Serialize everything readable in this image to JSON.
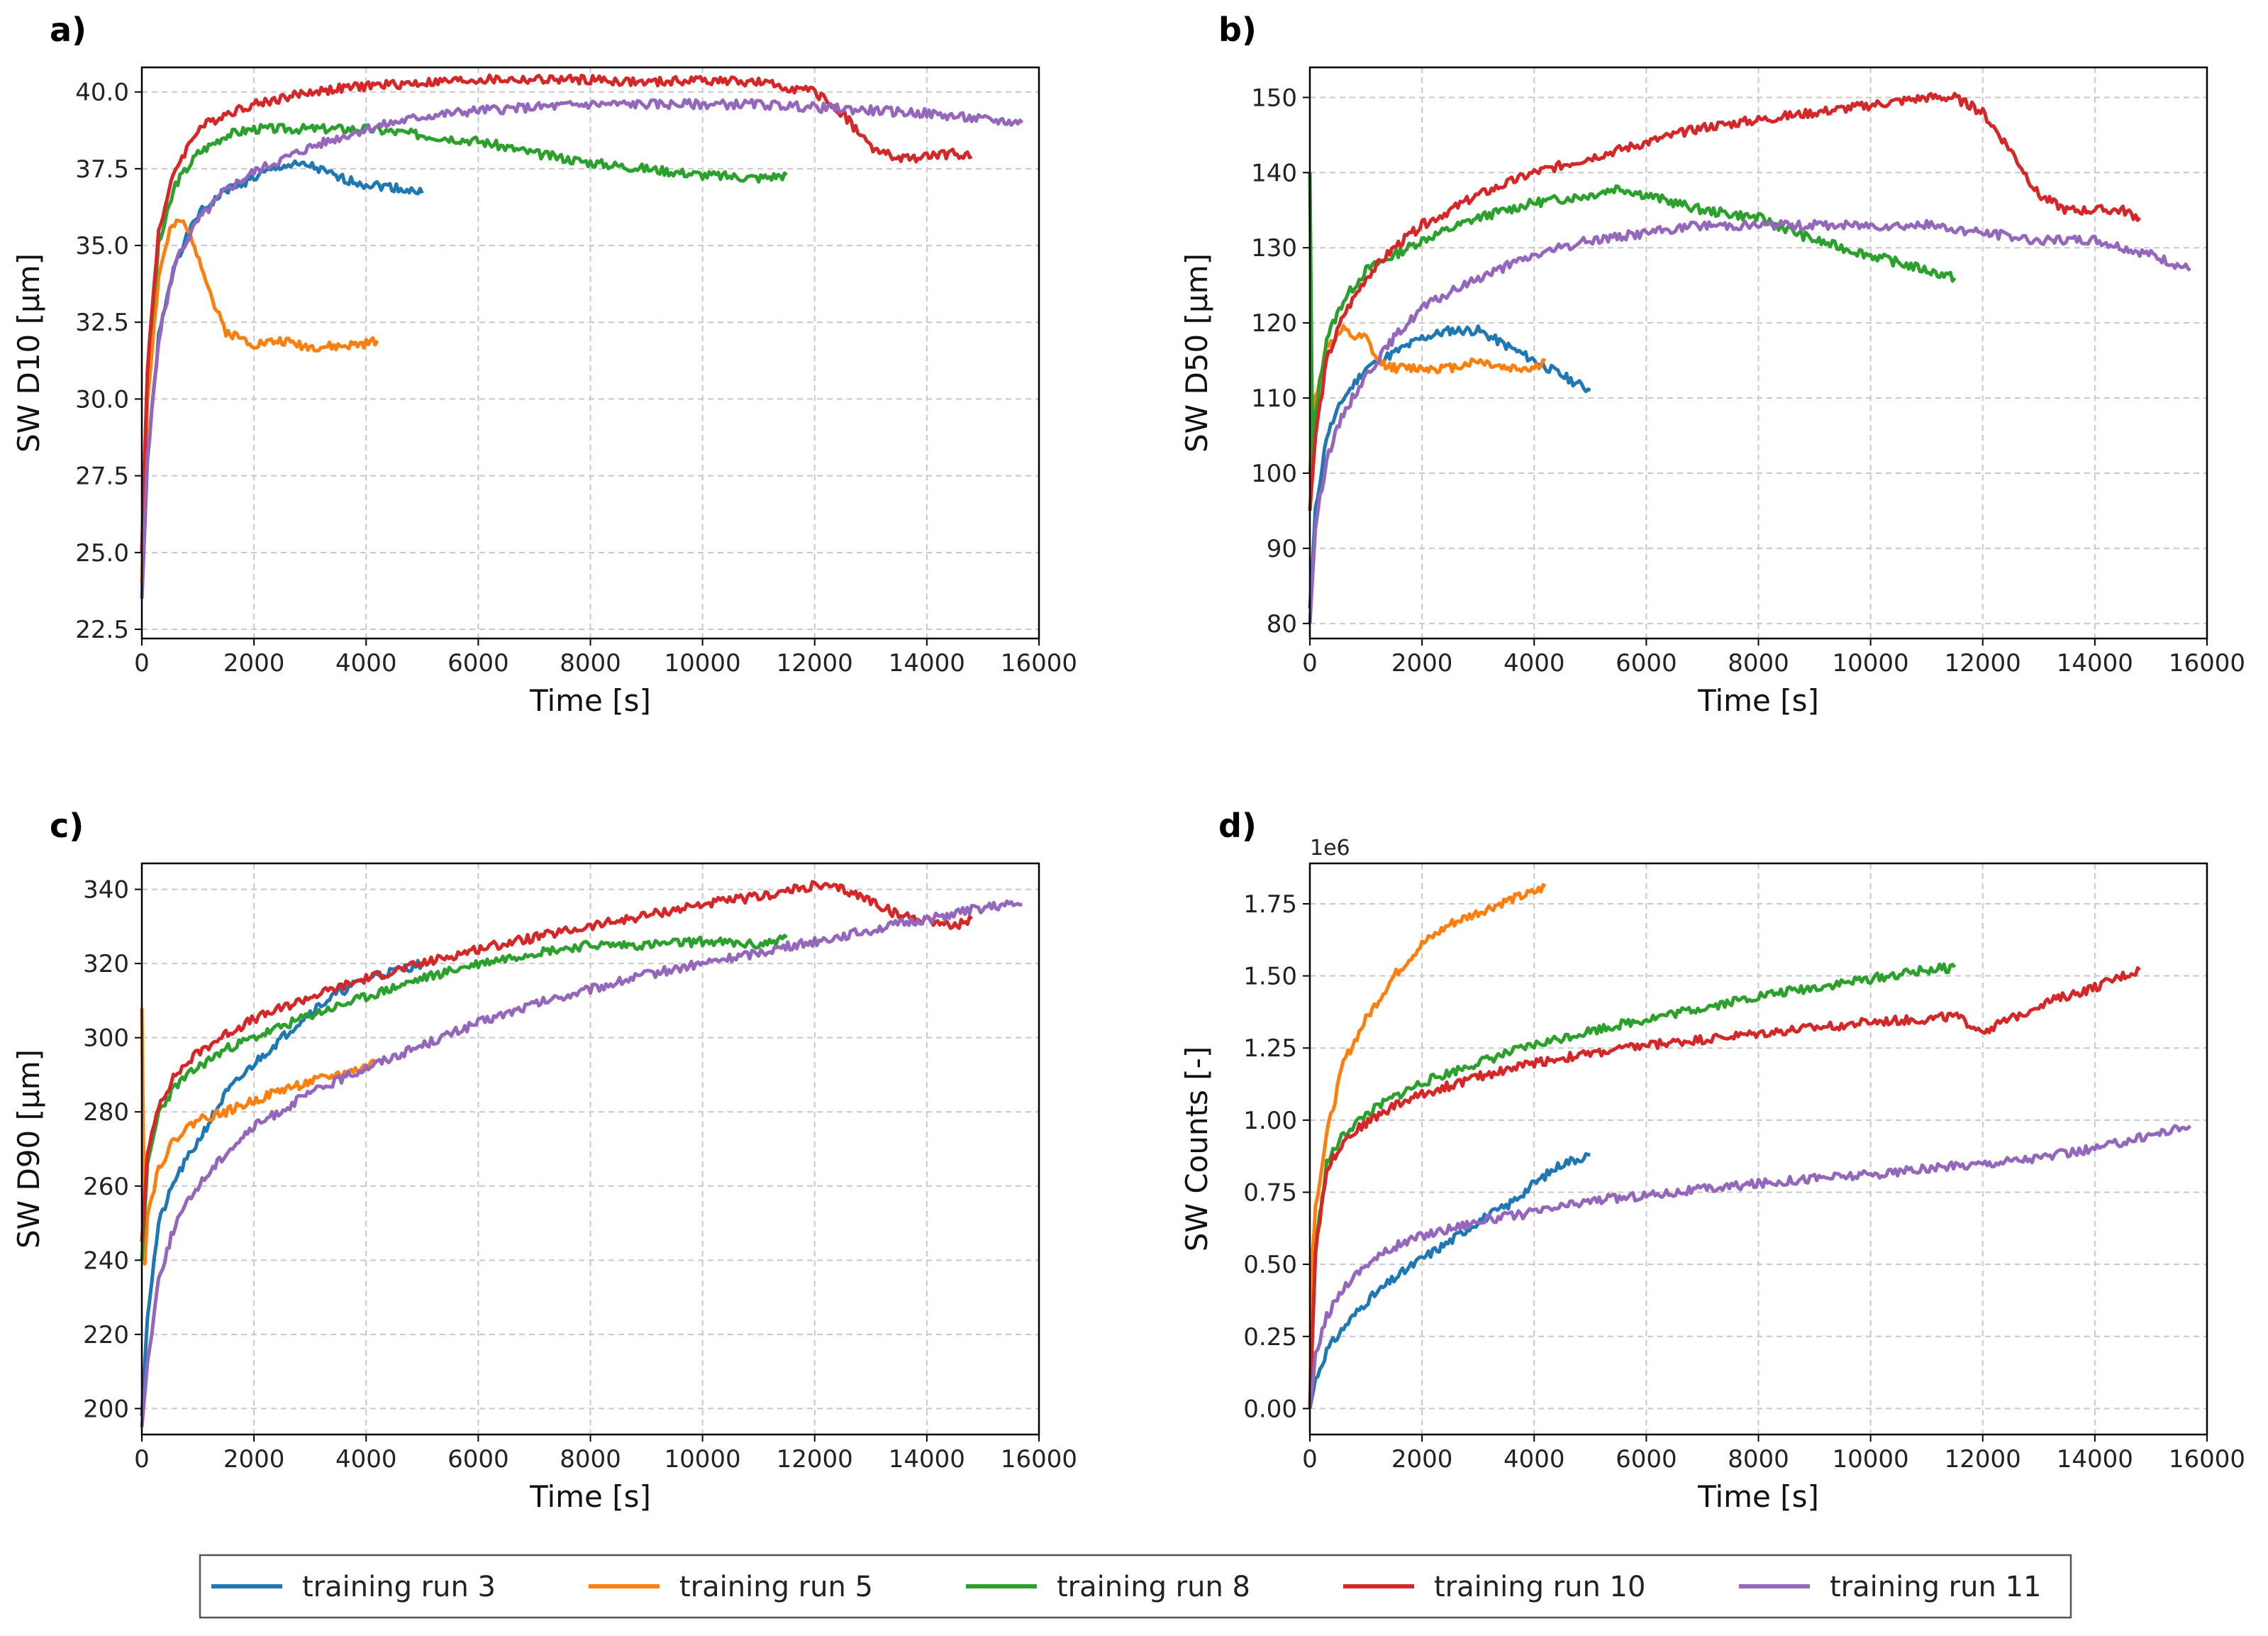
{
  "chart_data": [
    {
      "panel": "a)",
      "type": "line",
      "title": "",
      "xlabel": "Time [s]",
      "ylabel": "SW D10 [μm]",
      "xlim": [
        0,
        16000
      ],
      "ylim": [
        22.2,
        40.8
      ],
      "xticks": [
        0,
        2000,
        4000,
        6000,
        8000,
        10000,
        12000,
        14000,
        16000
      ],
      "yticks": [
        22.5,
        25.0,
        27.5,
        30.0,
        32.5,
        35.0,
        37.5,
        40.0
      ],
      "ytick_labels": [
        "22.5",
        "25.0",
        "27.5",
        "30.0",
        "32.5",
        "35.0",
        "37.5",
        "40.0"
      ],
      "grid": true,
      "series": [
        {
          "name": "training run 3",
          "color": "#1f77b4",
          "x": [
            0,
            100,
            300,
            600,
            1000,
            1500,
            2000,
            2500,
            3000,
            3500,
            4000,
            4500,
            5000
          ],
          "y": [
            23.5,
            28,
            32,
            34.5,
            36,
            36.8,
            37.2,
            37.6,
            37.6,
            37.2,
            37.0,
            36.9,
            36.7
          ]
        },
        {
          "name": "training run 5",
          "color": "#ff7f0e",
          "x": [
            0,
            100,
            300,
            500,
            700,
            900,
            1100,
            1300,
            1500,
            2000,
            2500,
            3000,
            3500,
            4000,
            4200
          ],
          "y": [
            24,
            30,
            34,
            35.5,
            35.8,
            35.2,
            34.2,
            33,
            32.2,
            31.8,
            31.9,
            31.7,
            31.7,
            31.8,
            31.9
          ]
        },
        {
          "name": "training run 8",
          "color": "#2ca02c",
          "x": [
            0,
            100,
            300,
            600,
            1000,
            1500,
            2000,
            3000,
            4000,
            5000,
            6000,
            7000,
            8000,
            9000,
            10000,
            11000,
            11500
          ],
          "y": [
            25,
            31,
            35,
            37,
            38,
            38.6,
            38.8,
            38.8,
            38.8,
            38.6,
            38.4,
            38.0,
            37.7,
            37.5,
            37.3,
            37.2,
            37.3
          ]
        },
        {
          "name": "training run 10",
          "color": "#d62728",
          "x": [
            0,
            100,
            300,
            600,
            1000,
            1500,
            2000,
            3000,
            4000,
            5000,
            6000,
            7000,
            8000,
            9000,
            10000,
            11000,
            12000,
            12500,
            13000,
            13500,
            14000,
            14500,
            14800
          ],
          "y": [
            25,
            31,
            35.5,
            37.5,
            38.8,
            39.3,
            39.6,
            40.0,
            40.2,
            40.3,
            40.4,
            40.4,
            40.4,
            40.3,
            40.4,
            40.3,
            40.0,
            39.3,
            38.2,
            37.8,
            37.9,
            38.0,
            37.9
          ]
        },
        {
          "name": "training run 11",
          "color": "#9467bd",
          "x": [
            0,
            100,
            300,
            600,
            1000,
            1500,
            2000,
            3000,
            4000,
            5000,
            6000,
            7000,
            8000,
            9000,
            10000,
            11000,
            12000,
            13000,
            14000,
            15000,
            15700
          ],
          "y": [
            23.5,
            28,
            32,
            34.5,
            35.8,
            36.8,
            37.4,
            38.2,
            38.8,
            39.2,
            39.4,
            39.5,
            39.6,
            39.6,
            39.6,
            39.6,
            39.5,
            39.4,
            39.3,
            39.1,
            39.0
          ]
        }
      ]
    },
    {
      "panel": "b)",
      "type": "line",
      "title": "",
      "xlabel": "Time [s]",
      "ylabel": "SW D50 [μm]",
      "xlim": [
        0,
        16000
      ],
      "ylim": [
        78,
        154
      ],
      "xticks": [
        0,
        2000,
        4000,
        6000,
        8000,
        10000,
        12000,
        14000,
        16000
      ],
      "yticks": [
        80,
        90,
        100,
        110,
        120,
        130,
        140,
        150
      ],
      "ytick_labels": [
        "80",
        "90",
        "100",
        "110",
        "120",
        "130",
        "140",
        "150"
      ],
      "grid": true,
      "series": [
        {
          "name": "training run 3",
          "color": "#1f77b4",
          "x": [
            0,
            100,
            300,
            600,
            1000,
            1500,
            2000,
            2500,
            3000,
            3500,
            4000,
            4500,
            5000
          ],
          "y": [
            82,
            95,
            105,
            110,
            114,
            116,
            118,
            119,
            119,
            117,
            115,
            113,
            111
          ]
        },
        {
          "name": "training run 5",
          "color": "#ff7f0e",
          "x": [
            0,
            100,
            300,
            600,
            800,
            1000,
            1200,
            1500,
            2000,
            2500,
            3000,
            3500,
            4000,
            4200
          ],
          "y": [
            100,
            110,
            117,
            119,
            118,
            118,
            115,
            114,
            114,
            114,
            115,
            114,
            114,
            115
          ]
        },
        {
          "name": "training run 8",
          "color": "#2ca02c",
          "x": [
            0,
            50,
            100,
            300,
            600,
            1000,
            1500,
            2000,
            3000,
            4000,
            5000,
            5500,
            6000,
            7000,
            8000,
            9000,
            10000,
            11000,
            11500
          ],
          "y": [
            140,
            100,
            108,
            118,
            123,
            127,
            129,
            131,
            134,
            136,
            137,
            138,
            137,
            135,
            134,
            131,
            129,
            127,
            126
          ]
        },
        {
          "name": "training run 10",
          "color": "#d62728",
          "x": [
            0,
            100,
            300,
            600,
            1000,
            1500,
            2000,
            3000,
            4000,
            5000,
            6000,
            7000,
            8000,
            9000,
            10000,
            11000,
            11500,
            12000,
            12500,
            13000,
            13500,
            14000,
            14500,
            14800
          ],
          "y": [
            95,
            105,
            115,
            121,
            126,
            130,
            133,
            137,
            140,
            142,
            144,
            146,
            147,
            148,
            149,
            150,
            150,
            148,
            143,
            137,
            135,
            135,
            135,
            134
          ]
        },
        {
          "name": "training run 11",
          "color": "#9467bd",
          "x": [
            0,
            100,
            300,
            600,
            1000,
            1500,
            2000,
            3000,
            4000,
            5000,
            6000,
            7000,
            8000,
            9000,
            10000,
            11000,
            12000,
            13000,
            14000,
            15000,
            15700
          ],
          "y": [
            80,
            93,
            102,
            108,
            113,
            118,
            122,
            126,
            129,
            131,
            132,
            133,
            133,
            133,
            133,
            133,
            132,
            131,
            131,
            129,
            127
          ]
        }
      ]
    },
    {
      "panel": "c)",
      "type": "line",
      "title": "",
      "xlabel": "Time [s]",
      "ylabel": "SW D90 [μm]",
      "xlim": [
        0,
        16000
      ],
      "ylim": [
        193,
        347
      ],
      "xticks": [
        0,
        2000,
        4000,
        6000,
        8000,
        10000,
        12000,
        14000,
        16000
      ],
      "yticks": [
        200,
        220,
        240,
        260,
        280,
        300,
        320,
        340
      ],
      "ytick_labels": [
        "200",
        "220",
        "240",
        "260",
        "280",
        "300",
        "320",
        "340"
      ],
      "grid": true,
      "series": [
        {
          "name": "training run 3",
          "color": "#1f77b4",
          "x": [
            0,
            100,
            300,
            600,
            1000,
            1500,
            2000,
            2500,
            3000,
            3500,
            4000,
            4500,
            5000
          ],
          "y": [
            198,
            225,
            250,
            262,
            272,
            285,
            293,
            300,
            307,
            312,
            316,
            318,
            320
          ]
        },
        {
          "name": "training run 5",
          "color": "#ff7f0e",
          "x": [
            0,
            50,
            100,
            300,
            600,
            1000,
            1500,
            2000,
            2500,
            3000,
            3500,
            4000,
            4200
          ],
          "y": [
            308,
            240,
            252,
            265,
            273,
            278,
            280,
            283,
            286,
            288,
            290,
            292,
            294
          ]
        },
        {
          "name": "training run 8",
          "color": "#2ca02c",
          "x": [
            0,
            100,
            300,
            600,
            1000,
            1500,
            2000,
            3000,
            4000,
            5000,
            6000,
            7000,
            8000,
            9000,
            10000,
            11000,
            11500
          ],
          "y": [
            240,
            265,
            280,
            287,
            292,
            297,
            300,
            306,
            311,
            316,
            320,
            323,
            325,
            325,
            326,
            325,
            327
          ]
        },
        {
          "name": "training run 10",
          "color": "#d62728",
          "x": [
            0,
            100,
            300,
            600,
            1000,
            1500,
            2000,
            3000,
            4000,
            5000,
            6000,
            7000,
            8000,
            9000,
            10000,
            11000,
            12000,
            12500,
            13000,
            13500,
            14000,
            14500,
            14800
          ],
          "y": [
            245,
            268,
            282,
            290,
            296,
            301,
            305,
            311,
            316,
            320,
            324,
            327,
            330,
            333,
            336,
            338,
            341,
            340,
            337,
            333,
            332,
            330,
            332
          ]
        },
        {
          "name": "training run 11",
          "color": "#9467bd",
          "x": [
            0,
            100,
            300,
            600,
            1000,
            1500,
            2000,
            3000,
            4000,
            5000,
            6000,
            7000,
            8000,
            9000,
            10000,
            11000,
            12000,
            13000,
            14000,
            15000,
            15700
          ],
          "y": [
            195,
            212,
            235,
            250,
            260,
            269,
            276,
            285,
            292,
            298,
            304,
            309,
            313,
            317,
            320,
            323,
            326,
            329,
            332,
            335,
            336
          ]
        }
      ]
    },
    {
      "panel": "d)",
      "type": "line",
      "title": "",
      "xlabel": "Time [s]",
      "ylabel": "SW Counts [-]",
      "offset_text": "1e6",
      "xlim": [
        0,
        16000
      ],
      "ylim": [
        -0.09,
        1.89
      ],
      "xticks": [
        0,
        2000,
        4000,
        6000,
        8000,
        10000,
        12000,
        14000,
        16000
      ],
      "yticks": [
        0.0,
        0.25,
        0.5,
        0.75,
        1.0,
        1.25,
        1.5,
        1.75
      ],
      "ytick_labels": [
        "0.00",
        "0.25",
        "0.50",
        "0.75",
        "1.00",
        "1.25",
        "1.50",
        "1.75"
      ],
      "grid": true,
      "series": [
        {
          "name": "training run 3",
          "color": "#1f77b4",
          "x": [
            0,
            100,
            300,
            600,
            1000,
            1500,
            2000,
            2500,
            3000,
            3500,
            4000,
            4500,
            5000
          ],
          "y": [
            0.0,
            0.1,
            0.2,
            0.28,
            0.37,
            0.45,
            0.52,
            0.58,
            0.65,
            0.7,
            0.78,
            0.85,
            0.88
          ]
        },
        {
          "name": "training run 5",
          "color": "#ff7f0e",
          "x": [
            0,
            50,
            100,
            300,
            600,
            1000,
            1500,
            2000,
            2500,
            3000,
            3500,
            4000,
            4200
          ],
          "y": [
            0.0,
            0.55,
            0.7,
            0.95,
            1.2,
            1.35,
            1.5,
            1.61,
            1.68,
            1.72,
            1.76,
            1.79,
            1.81
          ]
        },
        {
          "name": "training run 8",
          "color": "#2ca02c",
          "x": [
            0,
            100,
            300,
            600,
            1000,
            1500,
            2000,
            3000,
            4000,
            5000,
            6000,
            7000,
            8000,
            9000,
            10000,
            11000,
            11500
          ],
          "y": [
            0.0,
            0.55,
            0.85,
            0.95,
            1.02,
            1.08,
            1.13,
            1.2,
            1.26,
            1.31,
            1.35,
            1.39,
            1.43,
            1.46,
            1.49,
            1.52,
            1.53
          ]
        },
        {
          "name": "training run 10",
          "color": "#d62728",
          "x": [
            0,
            100,
            300,
            600,
            1000,
            1500,
            2000,
            3000,
            4000,
            5000,
            6000,
            7000,
            8000,
            9000,
            10000,
            11000,
            11500,
            11800,
            12000,
            12500,
            13000,
            13500,
            14000,
            14500,
            14800
          ],
          "y": [
            0.0,
            0.55,
            0.83,
            0.93,
            0.99,
            1.05,
            1.09,
            1.15,
            1.2,
            1.23,
            1.26,
            1.28,
            1.3,
            1.32,
            1.34,
            1.35,
            1.36,
            1.33,
            1.31,
            1.35,
            1.4,
            1.43,
            1.46,
            1.5,
            1.52
          ]
        },
        {
          "name": "training run 11",
          "color": "#9467bd",
          "x": [
            0,
            100,
            300,
            600,
            1000,
            1500,
            2000,
            3000,
            4000,
            5000,
            6000,
            7000,
            8000,
            9000,
            10000,
            11000,
            12000,
            13000,
            14000,
            15000,
            15700
          ],
          "y": [
            0.0,
            0.18,
            0.32,
            0.42,
            0.5,
            0.56,
            0.6,
            0.65,
            0.68,
            0.72,
            0.74,
            0.76,
            0.78,
            0.8,
            0.81,
            0.83,
            0.85,
            0.87,
            0.9,
            0.95,
            0.98
          ]
        }
      ]
    }
  ],
  "legend": {
    "placement": "bottom-center",
    "items": [
      {
        "label": "training run 3",
        "color": "#1f77b4"
      },
      {
        "label": "training run 5",
        "color": "#ff7f0e"
      },
      {
        "label": "training run 8",
        "color": "#2ca02c"
      },
      {
        "label": "training run 10",
        "color": "#d62728"
      },
      {
        "label": "training run 11",
        "color": "#9467bd"
      }
    ]
  }
}
